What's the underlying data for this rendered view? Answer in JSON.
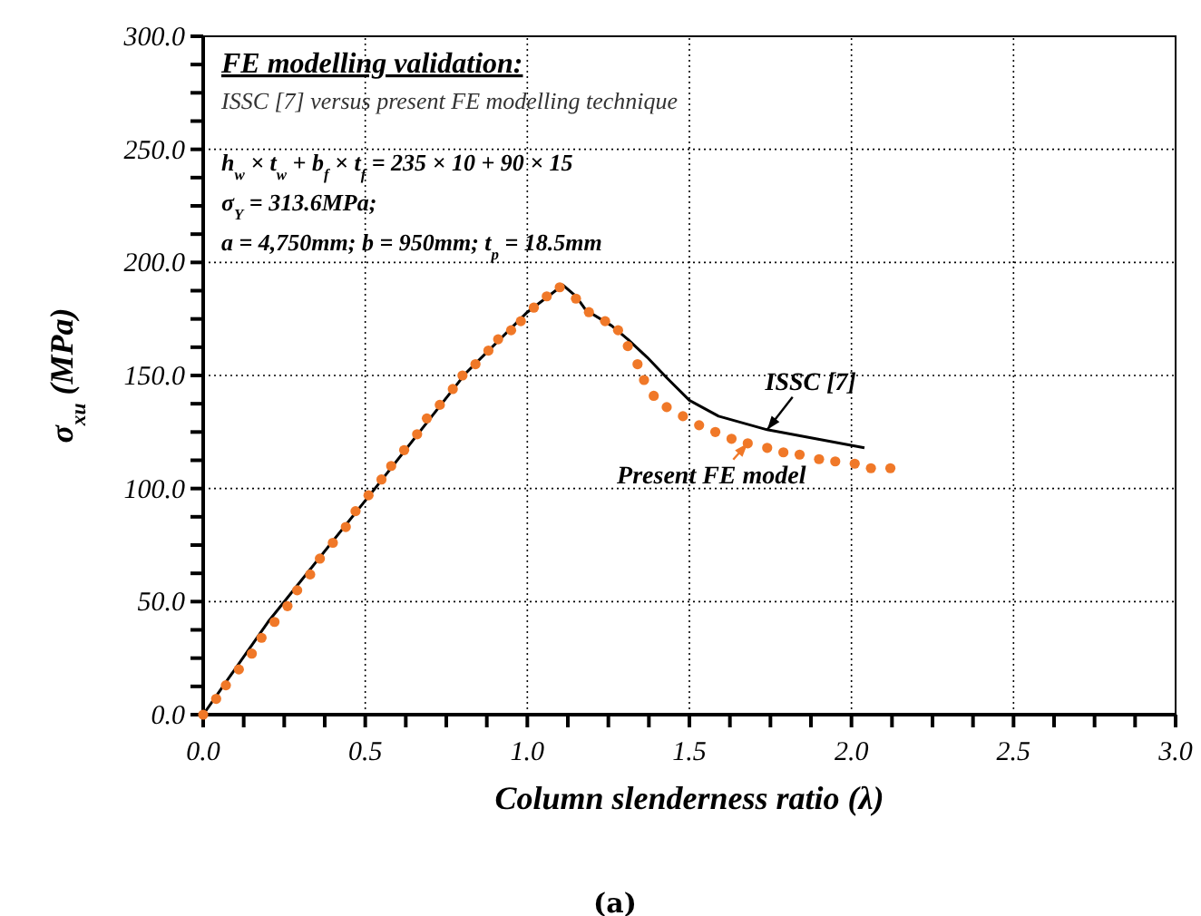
{
  "chart_data": {
    "type": "line",
    "title": "FE modelling validation:",
    "subtitle": "ISSC [7] versus present FE modelling technique",
    "xlabel": "Column slenderness ratio (λ)",
    "ylabel": "σ$_{xu}$ (MPa)",
    "annotations": [
      "h$_{w}$ × t$_{w}$ +  b$_{f}$ × t$_{f}$ = 235 × 10 + 90 × 15",
      "σ$_{Y}$ = 313.6MPa;",
      "a = 4,750mm; b = 950mm;  t$_{p}$ = 18.5mm",
      "(a)"
    ],
    "xlim": [
      0,
      3
    ],
    "ylim": [
      0,
      300
    ],
    "xticks": [
      {
        "value": 0,
        "label": "0.0"
      },
      {
        "value": 0.125,
        "label": null
      },
      {
        "value": 0.25,
        "label": null
      },
      {
        "value": 0.375,
        "label": null
      },
      {
        "value": 0.5,
        "label": "0.5"
      },
      {
        "value": 0.625,
        "label": null
      },
      {
        "value": 0.75,
        "label": null
      },
      {
        "value": 0.875,
        "label": null
      },
      {
        "value": 1,
        "label": "1.0"
      },
      {
        "value": 1.125,
        "label": null
      },
      {
        "value": 1.25,
        "label": null
      },
      {
        "value": 1.375,
        "label": null
      },
      {
        "value": 1.5,
        "label": "1.5"
      },
      {
        "value": 1.625,
        "label": null
      },
      {
        "value": 1.75,
        "label": null
      },
      {
        "value": 1.875,
        "label": null
      },
      {
        "value": 2,
        "label": "2.0"
      },
      {
        "value": 2.125,
        "label": null
      },
      {
        "value": 2.25,
        "label": null
      },
      {
        "value": 2.375,
        "label": null
      },
      {
        "value": 2.5,
        "label": "2.5"
      },
      {
        "value": 2.625,
        "label": null
      },
      {
        "value": 2.75,
        "label": null
      },
      {
        "value": 2.875,
        "label": null
      },
      {
        "value": 3,
        "label": "3.0"
      }
    ],
    "yticks": [
      {
        "value": 0,
        "label": "0.0"
      },
      {
        "value": 12.5,
        "label": null
      },
      {
        "value": 25,
        "label": null
      },
      {
        "value": 37.5,
        "label": null
      },
      {
        "value": 50,
        "label": "50.0"
      },
      {
        "value": 62.5,
        "label": null
      },
      {
        "value": 75,
        "label": null
      },
      {
        "value": 87.5,
        "label": null
      },
      {
        "value": 100,
        "label": "100.0"
      },
      {
        "value": 112.5,
        "label": null
      },
      {
        "value": 125,
        "label": null
      },
      {
        "value": 137.5,
        "label": null
      },
      {
        "value": 150,
        "label": "150.0"
      },
      {
        "value": 162.5,
        "label": null
      },
      {
        "value": 175,
        "label": null
      },
      {
        "value": 187.5,
        "label": null
      },
      {
        "value": 200,
        "label": "200.0"
      },
      {
        "value": 212.5,
        "label": null
      },
      {
        "value": 225,
        "label": null
      },
      {
        "value": 237.5,
        "label": null
      },
      {
        "value": 250,
        "label": "250.0"
      },
      {
        "value": 262.5,
        "label": null
      },
      {
        "value": 275,
        "label": null
      },
      {
        "value": 287.5,
        "label": null
      },
      {
        "value": 300,
        "label": "300.0"
      }
    ],
    "grid": true,
    "series": [
      {
        "name": "ISSC [7]",
        "color": "#000000",
        "marker": "none",
        "line_style": "solid",
        "x": [
          0,
          0.2,
          0.53,
          0.81,
          1.0,
          1.11,
          1.15,
          1.18,
          1.26,
          1.31,
          1.37,
          1.43,
          1.5,
          1.59,
          1.74,
          1.89,
          2.04
        ],
        "values": [
          0,
          41,
          100,
          151,
          178,
          190,
          185,
          179,
          172,
          166,
          158,
          149,
          139,
          132,
          126,
          122,
          118
        ]
      },
      {
        "name": "Present FE model",
        "type": "scatter",
        "color": "#f07828",
        "marker": "circle",
        "x": [
          0,
          0.04,
          0.07,
          0.11,
          0.15,
          0.18,
          0.22,
          0.26,
          0.29,
          0.33,
          0.36,
          0.4,
          0.44,
          0.47,
          0.51,
          0.55,
          0.58,
          0.62,
          0.66,
          0.69,
          0.73,
          0.77,
          0.8,
          0.84,
          0.88,
          0.91,
          0.95,
          0.98,
          1.02,
          1.06,
          1.1,
          1.15,
          1.19,
          1.24,
          1.28,
          1.31,
          1.34,
          1.36,
          1.39,
          1.43,
          1.48,
          1.53,
          1.58,
          1.63,
          1.68,
          1.74,
          1.79,
          1.84,
          1.9,
          1.95,
          2.01,
          2.06,
          2.12
        ],
        "values": [
          0,
          7,
          13,
          20,
          27,
          34,
          41,
          48,
          55,
          62,
          69,
          76,
          83,
          90,
          97,
          104,
          110,
          117,
          124,
          131,
          137,
          144,
          150,
          155,
          161,
          166,
          170,
          174,
          180,
          185,
          189,
          184,
          178,
          174,
          170,
          163,
          155,
          148,
          141,
          136,
          132,
          128,
          125,
          122,
          120,
          118,
          116,
          115,
          113,
          112,
          111,
          109,
          109
        ]
      }
    ]
  }
}
